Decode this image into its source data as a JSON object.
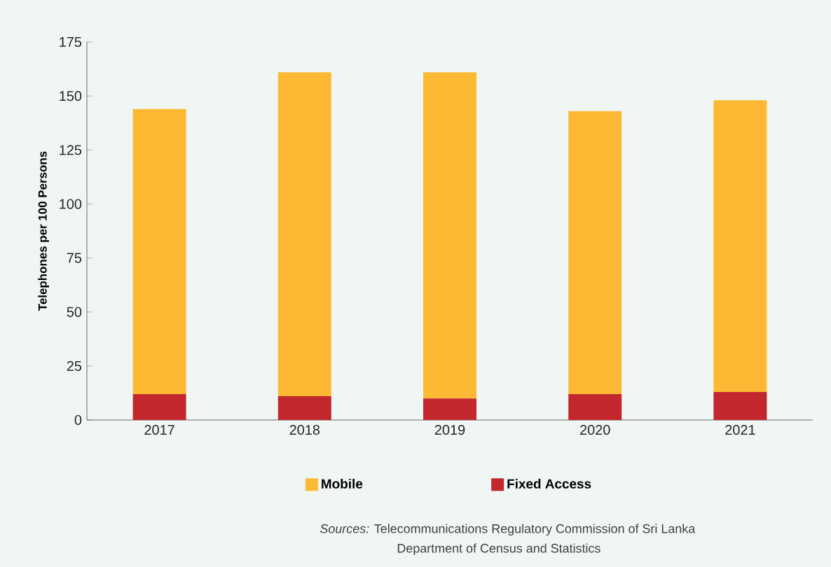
{
  "chart_data": {
    "type": "bar",
    "stacked": true,
    "ylabel": "Telephones per 100 Persons",
    "categories": [
      "2017",
      "2018",
      "2019",
      "2020",
      "2021"
    ],
    "series": [
      {
        "name": "Fixed Access",
        "color": "#c1272d",
        "values": [
          12,
          11,
          10,
          12,
          13
        ]
      },
      {
        "name": "Mobile",
        "color": "#fdb933",
        "values": [
          132,
          150,
          151,
          131,
          135
        ]
      }
    ],
    "ylim": [
      0,
      175
    ],
    "yticks": [
      0,
      25,
      50,
      75,
      100,
      125,
      150,
      175
    ],
    "legend": "bottom",
    "annotations": [
      "*Sources:* Telecommunications Regulatory Commission of Sri Lanka",
      "Department of Census and Statistics"
    ]
  }
}
